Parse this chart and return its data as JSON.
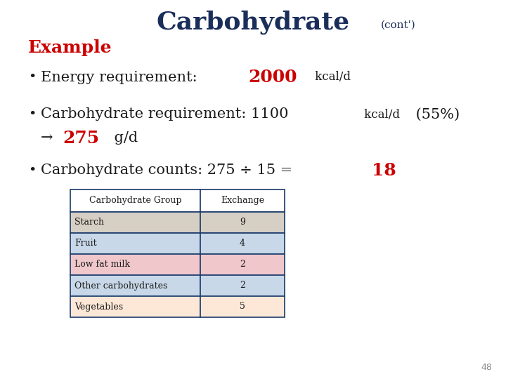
{
  "title_main": "Carbohydrate",
  "title_cont": "(cont')",
  "title_color": "#1a2e5a",
  "title_fontsize": 26,
  "cont_fontsize": 11,
  "example_label": "Example",
  "example_color": "#cc0000",
  "example_fontsize": 18,
  "highlight_color": "#cc0000",
  "table_headers": [
    "Carbohydrate Group",
    "Exchange"
  ],
  "table_rows": [
    [
      "Starch",
      "9"
    ],
    [
      "Fruit",
      "4"
    ],
    [
      "Low fat milk",
      "2"
    ],
    [
      "Other carbohydrates",
      "2"
    ],
    [
      "Vegetables",
      "5"
    ]
  ],
  "table_row_colors_left": [
    "#d6cfc4",
    "#c8d8e8",
    "#f0c8cc",
    "#c8d8e8",
    "#fde8d8"
  ],
  "table_row_colors_right": [
    "#d6cfc4",
    "#c8d8e8",
    "#f0c8cc",
    "#c8d8e8",
    "#fde8d8"
  ],
  "table_header_color": "#ffffff",
  "table_border_color": "#1a3a6b",
  "page_number": "48",
  "bg_color": "#ffffff",
  "text_color": "#1a1a1a"
}
